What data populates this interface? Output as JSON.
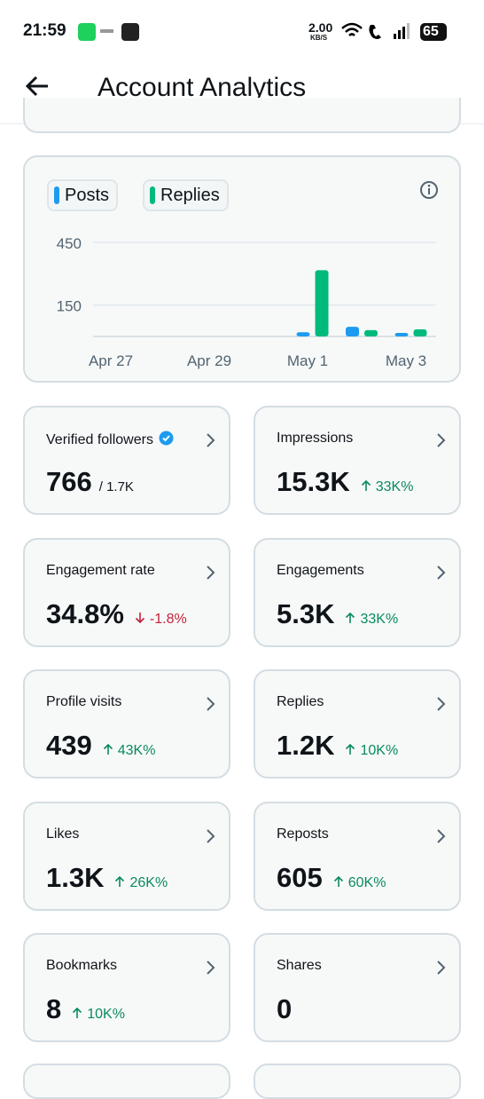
{
  "status_bar": {
    "time": "21:59",
    "speed": "2.00",
    "speed_unit": "KB/S",
    "battery": "65"
  },
  "header": {
    "title": "Account Analytics"
  },
  "chart_data": {
    "type": "bar",
    "categories": [
      "Apr 27",
      null,
      "Apr 29",
      null,
      "May 1",
      null,
      "May 3"
    ],
    "series": [
      {
        "name": "Posts",
        "color": "#1d9bf0",
        "values": [
          0,
          0,
          0,
          0,
          20,
          46,
          17
        ]
      },
      {
        "name": "Replies",
        "color": "#00ba7c",
        "values": [
          0,
          0,
          0,
          0,
          317,
          30,
          34
        ]
      }
    ],
    "ylim": [
      0,
      450
    ],
    "yticks": [
      150,
      450
    ],
    "grid": true
  },
  "cards": [
    {
      "label": "Verified followers",
      "value": "766",
      "detail": "/ 1.7K",
      "verified": true
    },
    {
      "label": "Impressions",
      "value": "15.3K",
      "change": "33K%",
      "direction": "up"
    },
    {
      "label": "Engagement rate",
      "value": "34.8%",
      "change": "-1.8%",
      "direction": "down"
    },
    {
      "label": "Engagements",
      "value": "5.3K",
      "change": "33K%",
      "direction": "up"
    },
    {
      "label": "Profile visits",
      "value": "439",
      "change": "43K%",
      "direction": "up"
    },
    {
      "label": "Replies",
      "value": "1.2K",
      "change": "10K%",
      "direction": "up"
    },
    {
      "label": "Likes",
      "value": "1.3K",
      "change": "26K%",
      "direction": "up"
    },
    {
      "label": "Reposts",
      "value": "605",
      "change": "60K%",
      "direction": "up"
    },
    {
      "label": "Bookmarks",
      "value": "8",
      "change": "10K%",
      "direction": "up"
    },
    {
      "label": "Shares",
      "value": "0"
    }
  ]
}
